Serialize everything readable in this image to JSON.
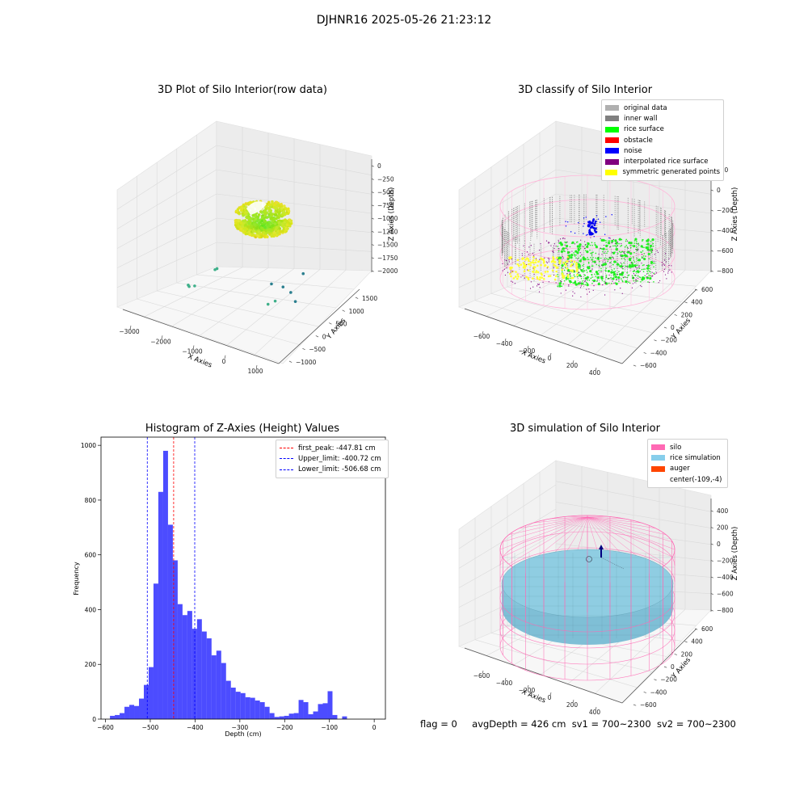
{
  "figure": {
    "suptitle": "DJHNR16 2025-05-26 21:23:12",
    "footer": {
      "flag": "flag = 0",
      "avg_depth": "avgDepth = 426 cm",
      "sv1": "sv1 = 700~2300",
      "sv2": "sv2 = 700~2300"
    }
  },
  "chart_data": [
    {
      "type": "scatter",
      "panel": "raw",
      "title": "3D Plot of Silo Interior(row data)",
      "xlabel": "X Axies",
      "ylabel": "Y Axies",
      "zlabel": "Z Axies (Depth)",
      "x_ticks": [
        "−3000",
        "−2000",
        "−1000",
        "0",
        "1000"
      ],
      "y_ticks": [
        "−1000",
        "−500",
        "0",
        "500",
        "1000",
        "1500"
      ],
      "z_ticks": [
        "0",
        "−250",
        "−500",
        "−750",
        "−1000",
        "−1250",
        "−1500",
        "−1750",
        "−2000"
      ],
      "outlier_points": [
        {
          "x": -1800,
          "y": 600,
          "z": -1500
        },
        {
          "x": -1850,
          "y": 580,
          "z": -1520
        },
        {
          "x": -2500,
          "y": 300,
          "z": -1800
        },
        {
          "x": -2450,
          "y": 280,
          "z": -1810
        },
        {
          "x": -2300,
          "y": 320,
          "z": -1790
        },
        {
          "x": -600,
          "y": 1300,
          "z": -1900
        },
        {
          "x": -300,
          "y": 1400,
          "z": -1950
        },
        {
          "x": 200,
          "y": 1600,
          "z": -1700
        },
        {
          "x": 150,
          "y": 1200,
          "z": -1880
        },
        {
          "x": -100,
          "y": 900,
          "z": -1950
        },
        {
          "x": -250,
          "y": 800,
          "z": -1990
        },
        {
          "x": 400,
          "y": 1100,
          "z": -1960
        }
      ],
      "grid": true
    },
    {
      "type": "scatter",
      "panel": "classify",
      "title": "3D classify of Silo Interior",
      "xlabel": "X Axies",
      "ylabel": "Y Axies",
      "zlabel": "Z Axies (Depth)",
      "x_ticks": [
        "−600",
        "−400",
        "−200",
        "0",
        "200",
        "400"
      ],
      "y_ticks": [
        "−600",
        "−400",
        "−200",
        "0",
        "200",
        "400",
        "600"
      ],
      "z_ticks": [
        "200",
        "0",
        "−200",
        "−400",
        "−600",
        "−800"
      ],
      "legend": [
        {
          "label": "original data",
          "color": "#b0b0b0"
        },
        {
          "label": "inner wall",
          "color": "#808080"
        },
        {
          "label": "rice surface",
          "color": "#00ff00"
        },
        {
          "label": "obstacle",
          "color": "#ff0000"
        },
        {
          "label": "noise",
          "color": "#0000ff"
        },
        {
          "label": "interpolated rice surface",
          "color": "#800080"
        },
        {
          "label": "symmetric generated points",
          "color": "#ffff00"
        }
      ],
      "legend_position": "top-right",
      "grid": true
    },
    {
      "type": "bar",
      "panel": "histogram",
      "title": "Histogram of Z-Axies (Height) Values",
      "xlabel": "Depth (cm)",
      "ylabel": "Frequency",
      "xlim": [
        -610,
        25
      ],
      "ylim": [
        0,
        1030
      ],
      "x_ticks": [
        -600,
        -500,
        -400,
        -300,
        -200,
        -100,
        0
      ],
      "x_tick_labels": [
        "−600",
        "−500",
        "−400",
        "−300",
        "−200",
        "−100",
        "0"
      ],
      "y_ticks": [
        0,
        200,
        400,
        600,
        800,
        1000
      ],
      "bin_start": -590,
      "bin_width": 10.8,
      "values": [
        12,
        15,
        22,
        45,
        52,
        48,
        75,
        125,
        190,
        495,
        830,
        980,
        710,
        580,
        420,
        380,
        395,
        330,
        365,
        320,
        295,
        233,
        250,
        205,
        140,
        115,
        100,
        95,
        80,
        78,
        68,
        62,
        45,
        22,
        8,
        10,
        12,
        20,
        22,
        70,
        62,
        18,
        28,
        55,
        58,
        102,
        15,
        0,
        10
      ],
      "bar_color": "#0000ff",
      "vlines": [
        {
          "x": -447.81,
          "label": "first_peak: -447.81 cm",
          "color": "#ff0000"
        },
        {
          "x": -400.72,
          "label": "Upper_limit: -400.72 cm",
          "color": "#0000ff"
        },
        {
          "x": -506.68,
          "label": "Lower_limit: -506.68 cm",
          "color": "#0000ff"
        }
      ],
      "legend_position": "top-right"
    },
    {
      "type": "scatter",
      "panel": "simulation",
      "title": "3D simulation of Silo Interior",
      "xlabel": "X Axies",
      "ylabel": "Y Axies",
      "zlabel": "Z Axies (Depth)",
      "x_ticks": [
        "−600",
        "−400",
        "−200",
        "0",
        "200",
        "400"
      ],
      "y_ticks": [
        "−600",
        "−400",
        "−200",
        "0",
        "200",
        "400",
        "600"
      ],
      "z_ticks": [
        "400",
        "200",
        "0",
        "−200",
        "−400",
        "−600",
        "−800"
      ],
      "legend": [
        {
          "label": "silo",
          "color": "#ff69b4"
        },
        {
          "label": "rice simulation",
          "color": "#87ceeb"
        },
        {
          "label": "auger",
          "color": "#ff4500"
        },
        {
          "label": "center(-109,-4)",
          "color": ""
        }
      ],
      "legend_position": "top-right",
      "grid": true
    }
  ]
}
